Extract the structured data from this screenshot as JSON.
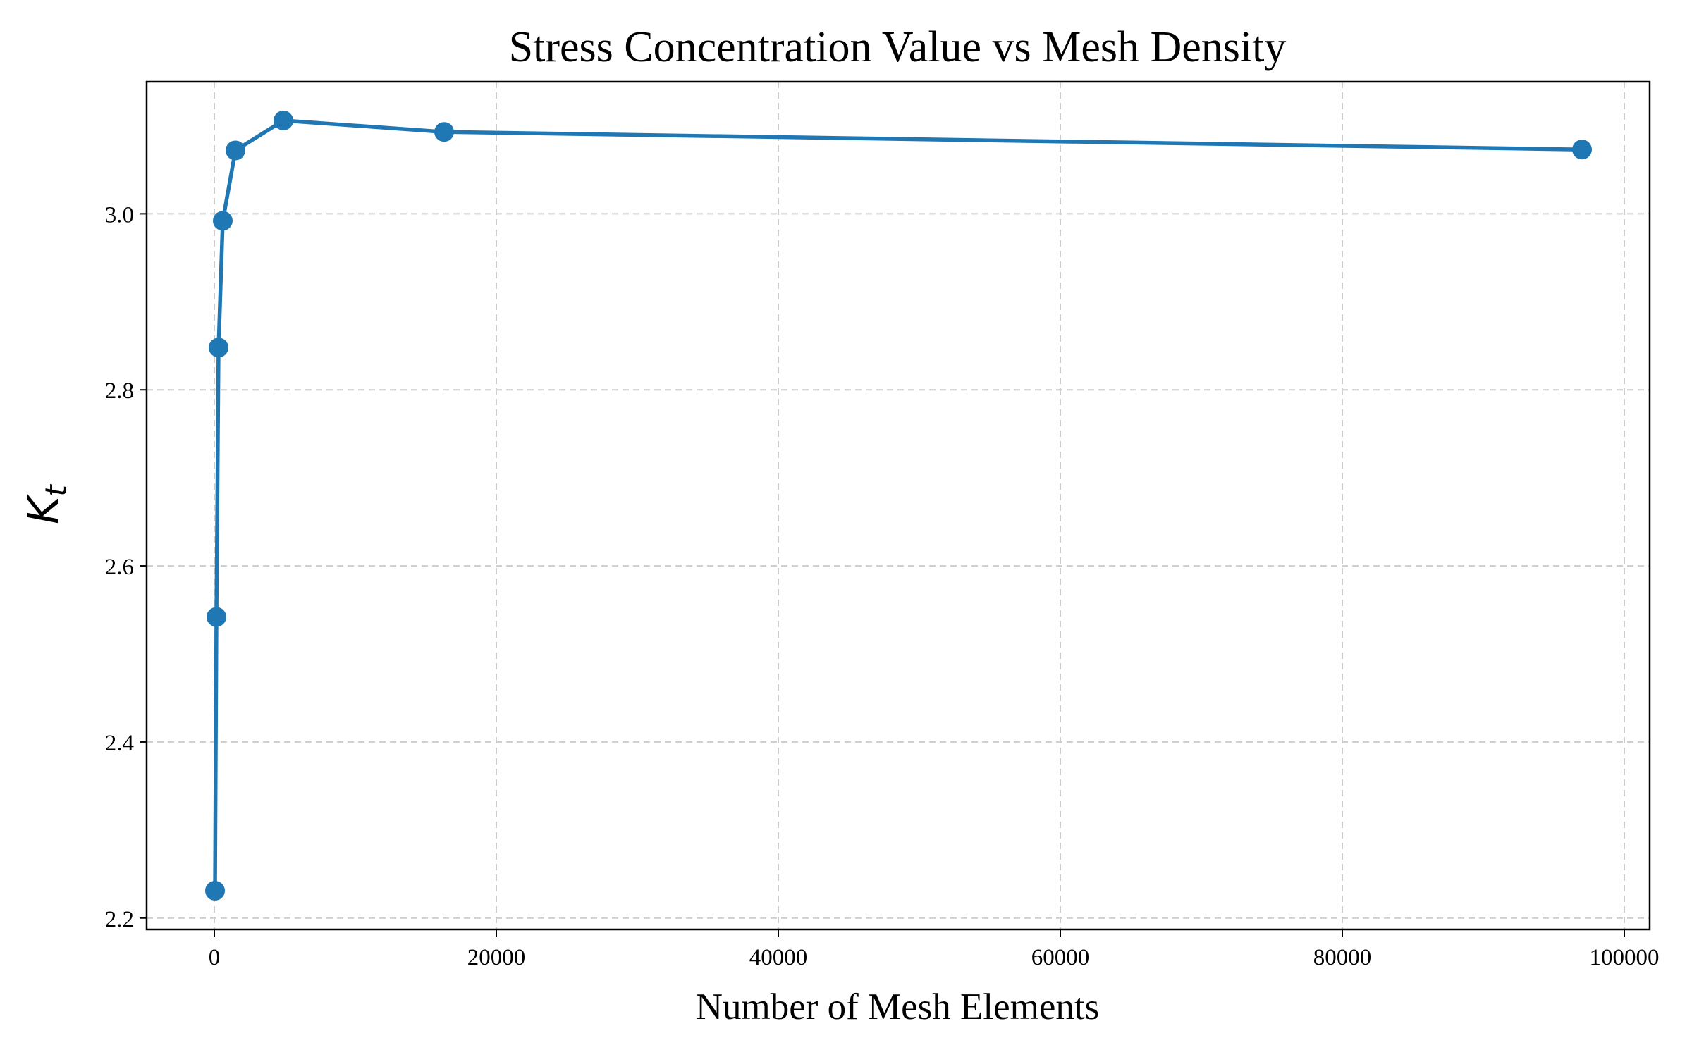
{
  "chart_data": {
    "type": "line",
    "title": "Stress Concentration Value vs Mesh Density",
    "xlabel": "Number of Mesh Elements",
    "ylabel": "K_t",
    "ylabel_main": "K",
    "ylabel_sub": "t",
    "xlim": [
      -4800,
      101800
    ],
    "ylim": [
      2.187,
      3.15
    ],
    "xticks": [
      0,
      20000,
      40000,
      60000,
      80000,
      100000
    ],
    "yticks": [
      2.2,
      2.4,
      2.6,
      2.8,
      3.0
    ],
    "ytick_labels": [
      "2.2",
      "2.4",
      "2.6",
      "2.8",
      "3.0"
    ],
    "grid": true,
    "color": "#1f77b4",
    "series": [
      {
        "x": [
          50,
          150,
          300,
          600,
          1500,
          4900,
          16300,
          97000
        ],
        "y": [
          2.231,
          2.542,
          2.848,
          2.992,
          3.072,
          3.106,
          3.093,
          3.073
        ]
      }
    ]
  }
}
